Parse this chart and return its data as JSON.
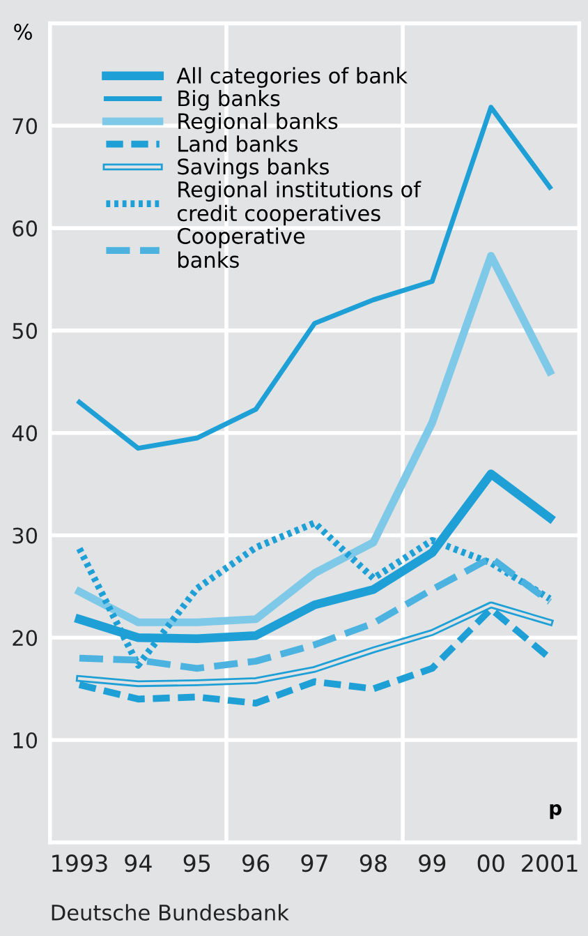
{
  "chart_data": {
    "type": "line",
    "ylabel": "%",
    "x": [
      1993,
      1994,
      1995,
      1996,
      1997,
      1998,
      1999,
      2000,
      2001
    ],
    "xlim": [
      1992.5,
      2001.5
    ],
    "xticks": [
      {
        "value": 1993,
        "label": "1993"
      },
      {
        "value": 1994,
        "label": "94"
      },
      {
        "value": 1995,
        "label": "95"
      },
      {
        "value": 1996,
        "label": "96"
      },
      {
        "value": 1997,
        "label": "97"
      },
      {
        "value": 1998,
        "label": "98"
      },
      {
        "value": 1999,
        "label": "99"
      },
      {
        "value": 2000,
        "label": "00"
      },
      {
        "value": 2001,
        "label": "2001"
      }
    ],
    "ylim": [
      0,
      80
    ],
    "yticks": [
      10,
      20,
      30,
      40,
      50,
      60,
      70
    ],
    "grid": "y",
    "legend": "top left",
    "marker": "none",
    "ref_lines": [
      {
        "axis": "x",
        "value": 1995.5,
        "color": "#ffffff"
      },
      {
        "axis": "x",
        "value": 1998.5,
        "color": "#ffffff"
      }
    ],
    "series": [
      {
        "name": "All categories of bank",
        "color": "#1ea0d7",
        "line_style": "solid",
        "values": [
          21.8,
          20,
          19.9,
          20.2,
          23.2,
          24.7,
          28.3,
          36,
          31.7
        ]
      },
      {
        "name": "Big banks",
        "color": "#1ea0d7",
        "line_style": "solid",
        "values": [
          43,
          38.5,
          39.5,
          42.3,
          50.7,
          53,
          54.8,
          71.8,
          64
        ]
      },
      {
        "name": "Regional banks",
        "color": "#7ec8e8",
        "line_style": "solid",
        "values": [
          24.5,
          21.5,
          21.5,
          21.8,
          26.3,
          29.3,
          41,
          57.3,
          46
        ]
      },
      {
        "name": "Land banks",
        "color": "#1ea0d7",
        "line_style": "dashed",
        "values": [
          15.4,
          14,
          14.2,
          13.6,
          15.7,
          15,
          17,
          22.8,
          18
        ]
      },
      {
        "name": "Savings banks",
        "color": "#1ea0d7",
        "line_style": "solid",
        "values": [
          16,
          15.5,
          15.6,
          15.8,
          16.9,
          18.8,
          20.5,
          23.2,
          21.5
        ]
      },
      {
        "name": "Regional institutions of\ncredit cooperatives",
        "color": "#1ea0d7",
        "line_style": "dotted",
        "values": [
          28.7,
          17.3,
          24.8,
          28.8,
          31.2,
          25.8,
          29.5,
          27.3,
          23.8
        ]
      },
      {
        "name": "Cooperative\nbanks",
        "color": "#4cb3e0",
        "line_style": "dashed",
        "values": [
          18,
          17.8,
          17,
          17.7,
          19.3,
          21.4,
          24.7,
          27.8,
          23.5
        ]
      }
    ],
    "annotations": [
      "p",
      "Deutsche Bundesbank"
    ]
  }
}
